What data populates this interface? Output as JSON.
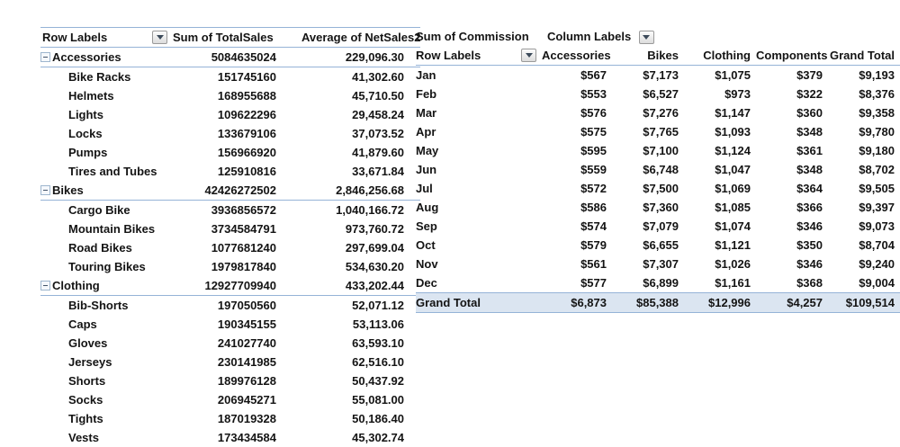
{
  "colors": {
    "border_blue": "#95B3D7",
    "grand_total_fill": "#DBE5F1",
    "text": "#141414",
    "background": "#FFFFFF"
  },
  "left_pivot": {
    "header": {
      "row_labels": "Row Labels",
      "col1": "Sum of TotalSales",
      "col2": "Average of NetSales2"
    },
    "rows": [
      {
        "type": "category",
        "label": "Accessories",
        "total_sales": "5084635024",
        "avg_net_sales": "229,096.30"
      },
      {
        "type": "item",
        "label": "Bike Racks",
        "total_sales": "151745160",
        "avg_net_sales": "41,302.60"
      },
      {
        "type": "item",
        "label": "Helmets",
        "total_sales": "168955688",
        "avg_net_sales": "45,710.50"
      },
      {
        "type": "item",
        "label": "Lights",
        "total_sales": "109622296",
        "avg_net_sales": "29,458.24"
      },
      {
        "type": "item",
        "label": "Locks",
        "total_sales": "133679106",
        "avg_net_sales": "37,073.52"
      },
      {
        "type": "item",
        "label": "Pumps",
        "total_sales": "156966920",
        "avg_net_sales": "41,879.60"
      },
      {
        "type": "item",
        "label": "Tires and Tubes",
        "total_sales": "125910816",
        "avg_net_sales": "33,671.84"
      },
      {
        "type": "category",
        "label": "Bikes",
        "total_sales": "42426272502",
        "avg_net_sales": "2,846,256.68"
      },
      {
        "type": "item",
        "label": "Cargo Bike",
        "total_sales": "3936856572",
        "avg_net_sales": "1,040,166.72"
      },
      {
        "type": "item",
        "label": "Mountain Bikes",
        "total_sales": "3734584791",
        "avg_net_sales": "973,760.72"
      },
      {
        "type": "item",
        "label": "Road Bikes",
        "total_sales": "1077681240",
        "avg_net_sales": "297,699.04"
      },
      {
        "type": "item",
        "label": "Touring Bikes",
        "total_sales": "1979817840",
        "avg_net_sales": "534,630.20"
      },
      {
        "type": "category",
        "label": "Clothing",
        "total_sales": "12927709940",
        "avg_net_sales": "433,202.44"
      },
      {
        "type": "item",
        "label": "Bib-Shorts",
        "total_sales": "197050560",
        "avg_net_sales": "52,071.12"
      },
      {
        "type": "item",
        "label": "Caps",
        "total_sales": "190345155",
        "avg_net_sales": "53,113.06"
      },
      {
        "type": "item",
        "label": "Gloves",
        "total_sales": "241027740",
        "avg_net_sales": "63,593.10"
      },
      {
        "type": "item",
        "label": "Jerseys",
        "total_sales": "230141985",
        "avg_net_sales": "62,516.10"
      },
      {
        "type": "item",
        "label": "Shorts",
        "total_sales": "189976128",
        "avg_net_sales": "50,437.92"
      },
      {
        "type": "item",
        "label": "Socks",
        "total_sales": "206945271",
        "avg_net_sales": "55,081.00"
      },
      {
        "type": "item",
        "label": "Tights",
        "total_sales": "187019328",
        "avg_net_sales": "50,186.40"
      },
      {
        "type": "item",
        "label": "Vests",
        "total_sales": "173434584",
        "avg_net_sales": "45,302.74"
      }
    ]
  },
  "right_pivot": {
    "value_caption": "Sum of Commission",
    "column_labels_caption": "Column Labels",
    "row_labels_caption": "Row Labels",
    "columns": [
      "Accessories",
      "Bikes",
      "Clothing",
      "Components",
      "Grand Total"
    ],
    "rows": [
      {
        "label": "Jan",
        "values": [
          "$567",
          "$7,173",
          "$1,075",
          "$379",
          "$9,193"
        ]
      },
      {
        "label": "Feb",
        "values": [
          "$553",
          "$6,527",
          "$973",
          "$322",
          "$8,376"
        ]
      },
      {
        "label": "Mar",
        "values": [
          "$576",
          "$7,276",
          "$1,147",
          "$360",
          "$9,358"
        ]
      },
      {
        "label": "Apr",
        "values": [
          "$575",
          "$7,765",
          "$1,093",
          "$348",
          "$9,780"
        ]
      },
      {
        "label": "May",
        "values": [
          "$595",
          "$7,100",
          "$1,124",
          "$361",
          "$9,180"
        ]
      },
      {
        "label": "Jun",
        "values": [
          "$559",
          "$6,748",
          "$1,047",
          "$348",
          "$8,702"
        ]
      },
      {
        "label": "Jul",
        "values": [
          "$572",
          "$7,500",
          "$1,069",
          "$364",
          "$9,505"
        ]
      },
      {
        "label": "Aug",
        "values": [
          "$586",
          "$7,360",
          "$1,085",
          "$366",
          "$9,397"
        ]
      },
      {
        "label": "Sep",
        "values": [
          "$574",
          "$7,079",
          "$1,074",
          "$346",
          "$9,073"
        ]
      },
      {
        "label": "Oct",
        "values": [
          "$579",
          "$6,655",
          "$1,121",
          "$350",
          "$8,704"
        ]
      },
      {
        "label": "Nov",
        "values": [
          "$561",
          "$7,307",
          "$1,026",
          "$346",
          "$9,240"
        ]
      },
      {
        "label": "Dec",
        "values": [
          "$577",
          "$6,899",
          "$1,161",
          "$368",
          "$9,004"
        ]
      }
    ],
    "grand_total": {
      "label": "Grand Total",
      "values": [
        "$6,873",
        "$85,388",
        "$12,996",
        "$4,257",
        "$109,514"
      ]
    }
  }
}
